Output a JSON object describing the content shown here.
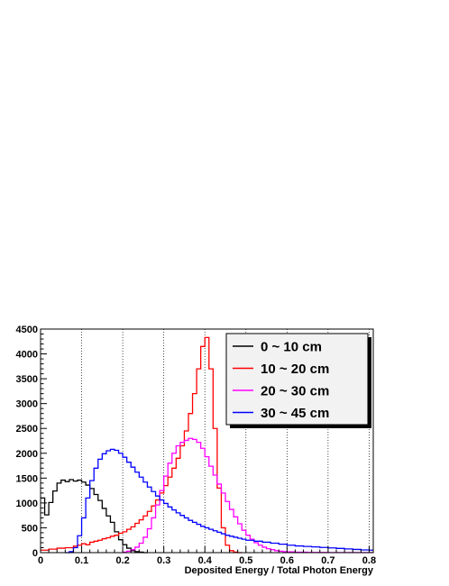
{
  "chart_data": {
    "type": "line",
    "style": "step-histogram",
    "title": "",
    "xlabel": "Deposited Energy / Total Photon Energy",
    "ylabel": "",
    "xlim": [
      0,
      0.81
    ],
    "ylim": [
      0,
      4500
    ],
    "grid": "vertical dotted lines at every 0.1",
    "legend_position": "top-right",
    "x_ticks": [
      "0",
      "0.1",
      "0.2",
      "0.3",
      "0.4",
      "0.5",
      "0.6",
      "0.7",
      "0.8"
    ],
    "y_ticks": [
      "0",
      "500",
      "1000",
      "1500",
      "2000",
      "2500",
      "3000",
      "3500",
      "4000",
      "4500"
    ],
    "bin_width": 0.01,
    "series": [
      {
        "name": "0 ~ 10 cm",
        "color": "#000000",
        "points": [
          [
            0.0,
            1100
          ],
          [
            0.01,
            760
          ],
          [
            0.02,
            1010
          ],
          [
            0.03,
            1240
          ],
          [
            0.04,
            1400
          ],
          [
            0.05,
            1460
          ],
          [
            0.06,
            1430
          ],
          [
            0.07,
            1470
          ],
          [
            0.08,
            1440
          ],
          [
            0.09,
            1460
          ],
          [
            0.1,
            1420
          ],
          [
            0.11,
            1360
          ],
          [
            0.12,
            1290
          ],
          [
            0.13,
            1170
          ],
          [
            0.14,
            1050
          ],
          [
            0.15,
            890
          ],
          [
            0.16,
            740
          ],
          [
            0.17,
            610
          ],
          [
            0.18,
            420
          ],
          [
            0.19,
            260
          ],
          [
            0.2,
            160
          ],
          [
            0.21,
            90
          ],
          [
            0.22,
            40
          ],
          [
            0.23,
            20
          ],
          [
            0.24,
            10
          ],
          [
            0.25,
            0
          ]
        ]
      },
      {
        "name": "10 ~ 20 cm",
        "color": "#ff0000",
        "points": [
          [
            0.0,
            50
          ],
          [
            0.02,
            70
          ],
          [
            0.04,
            90
          ],
          [
            0.06,
            100
          ],
          [
            0.08,
            130
          ],
          [
            0.09,
            150
          ],
          [
            0.1,
            180
          ],
          [
            0.11,
            160
          ],
          [
            0.12,
            210
          ],
          [
            0.13,
            230
          ],
          [
            0.14,
            250
          ],
          [
            0.15,
            280
          ],
          [
            0.16,
            300
          ],
          [
            0.17,
            330
          ],
          [
            0.18,
            350
          ],
          [
            0.19,
            390
          ],
          [
            0.2,
            420
          ],
          [
            0.21,
            470
          ],
          [
            0.22,
            520
          ],
          [
            0.23,
            590
          ],
          [
            0.24,
            660
          ],
          [
            0.25,
            740
          ],
          [
            0.26,
            830
          ],
          [
            0.27,
            940
          ],
          [
            0.28,
            1060
          ],
          [
            0.29,
            1200
          ],
          [
            0.3,
            1350
          ],
          [
            0.31,
            1520
          ],
          [
            0.32,
            1700
          ],
          [
            0.33,
            1900
          ],
          [
            0.34,
            2150
          ],
          [
            0.35,
            2450
          ],
          [
            0.36,
            2800
          ],
          [
            0.37,
            3200
          ],
          [
            0.38,
            3700
          ],
          [
            0.39,
            4150
          ],
          [
            0.4,
            4330
          ],
          [
            0.41,
            3700
          ],
          [
            0.42,
            2500
          ],
          [
            0.43,
            1300
          ],
          [
            0.44,
            500
          ],
          [
            0.45,
            150
          ],
          [
            0.46,
            40
          ],
          [
            0.47,
            10
          ],
          [
            0.48,
            0
          ]
        ]
      },
      {
        "name": "20 ~ 30 cm",
        "color": "#ff00ff",
        "points": [
          [
            0.2,
            10
          ],
          [
            0.21,
            30
          ],
          [
            0.22,
            60
          ],
          [
            0.23,
            110
          ],
          [
            0.24,
            190
          ],
          [
            0.25,
            310
          ],
          [
            0.26,
            480
          ],
          [
            0.27,
            700
          ],
          [
            0.28,
            960
          ],
          [
            0.29,
            1250
          ],
          [
            0.3,
            1540
          ],
          [
            0.31,
            1800
          ],
          [
            0.32,
            2000
          ],
          [
            0.33,
            2150
          ],
          [
            0.34,
            2220
          ],
          [
            0.35,
            2260
          ],
          [
            0.36,
            2300
          ],
          [
            0.37,
            2280
          ],
          [
            0.38,
            2220
          ],
          [
            0.39,
            2100
          ],
          [
            0.4,
            1930
          ],
          [
            0.41,
            1740
          ],
          [
            0.42,
            1560
          ],
          [
            0.43,
            1380
          ],
          [
            0.44,
            1200
          ],
          [
            0.45,
            1030
          ],
          [
            0.46,
            870
          ],
          [
            0.47,
            720
          ],
          [
            0.48,
            580
          ],
          [
            0.49,
            450
          ],
          [
            0.5,
            350
          ],
          [
            0.51,
            270
          ],
          [
            0.52,
            200
          ],
          [
            0.53,
            150
          ],
          [
            0.54,
            110
          ],
          [
            0.55,
            80
          ],
          [
            0.56,
            60
          ],
          [
            0.57,
            40
          ],
          [
            0.58,
            30
          ],
          [
            0.59,
            20
          ],
          [
            0.6,
            15
          ],
          [
            0.62,
            8
          ],
          [
            0.65,
            4
          ],
          [
            0.7,
            2
          ],
          [
            0.81,
            0
          ]
        ]
      },
      {
        "name": "30 ~ 45 cm",
        "color": "#0000ff",
        "points": [
          [
            0.06,
            0
          ],
          [
            0.07,
            20
          ],
          [
            0.08,
            100
          ],
          [
            0.09,
            340
          ],
          [
            0.1,
            700
          ],
          [
            0.11,
            1100
          ],
          [
            0.12,
            1450
          ],
          [
            0.13,
            1700
          ],
          [
            0.14,
            1880
          ],
          [
            0.15,
            1990
          ],
          [
            0.16,
            2050
          ],
          [
            0.17,
            2080
          ],
          [
            0.18,
            2060
          ],
          [
            0.19,
            2000
          ],
          [
            0.2,
            1920
          ],
          [
            0.21,
            1820
          ],
          [
            0.22,
            1720
          ],
          [
            0.23,
            1620
          ],
          [
            0.24,
            1520
          ],
          [
            0.25,
            1420
          ],
          [
            0.26,
            1320
          ],
          [
            0.27,
            1230
          ],
          [
            0.28,
            1140
          ],
          [
            0.29,
            1060
          ],
          [
            0.3,
            990
          ],
          [
            0.31,
            920
          ],
          [
            0.32,
            860
          ],
          [
            0.33,
            800
          ],
          [
            0.34,
            750
          ],
          [
            0.35,
            700
          ],
          [
            0.36,
            650
          ],
          [
            0.37,
            610
          ],
          [
            0.38,
            570
          ],
          [
            0.39,
            530
          ],
          [
            0.4,
            500
          ],
          [
            0.41,
            470
          ],
          [
            0.42,
            440
          ],
          [
            0.43,
            410
          ],
          [
            0.44,
            380
          ],
          [
            0.45,
            350
          ],
          [
            0.46,
            330
          ],
          [
            0.47,
            310
          ],
          [
            0.48,
            290
          ],
          [
            0.49,
            270
          ],
          [
            0.5,
            250
          ],
          [
            0.52,
            230
          ],
          [
            0.54,
            210
          ],
          [
            0.56,
            190
          ],
          [
            0.58,
            170
          ],
          [
            0.6,
            150
          ],
          [
            0.62,
            135
          ],
          [
            0.64,
            125
          ],
          [
            0.66,
            115
          ],
          [
            0.68,
            105
          ],
          [
            0.7,
            95
          ],
          [
            0.72,
            85
          ],
          [
            0.74,
            75
          ],
          [
            0.76,
            65
          ],
          [
            0.78,
            55
          ],
          [
            0.8,
            50
          ]
        ]
      }
    ]
  }
}
